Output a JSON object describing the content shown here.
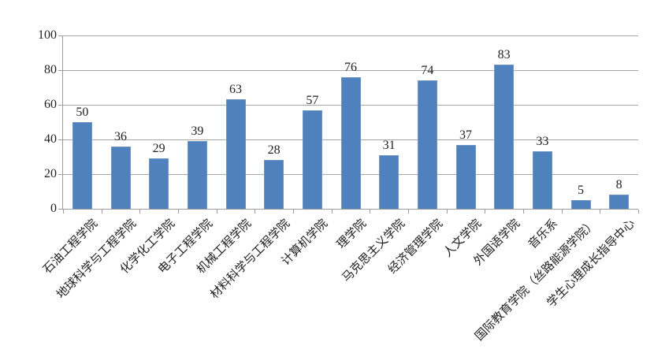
{
  "chart_data": {
    "type": "bar",
    "title": "",
    "categories": [
      "石油工程学院",
      "地球科学与工程学院",
      "化学化工学院",
      "电子工程学院",
      "机械工程学院",
      "材料科学与工程学院",
      "计算机学院",
      "理学院",
      "马克思主义学院",
      "经济管理学院",
      "人文学院",
      "外国语学院",
      "音乐系",
      "国际教育学院（丝路能源学院）",
      "学生心理成长指导中心"
    ],
    "values": [
      50,
      36,
      29,
      39,
      63,
      28,
      57,
      76,
      31,
      74,
      37,
      83,
      33,
      5,
      8
    ],
    "data_labels_visible": true,
    "xlabel": "",
    "ylabel": "",
    "ylim": [
      0,
      100
    ],
    "yticks": [
      0,
      20,
      40,
      60,
      80,
      100
    ],
    "grid": "horizontal",
    "legend": "none",
    "category_label_rotation_deg": 45,
    "colors": {
      "bar_fill": "#4f81bd",
      "bar_border": "#7094c4",
      "gridline": "#a6a6a6",
      "axis": "#9b9b9b",
      "text": "#1f1f1f",
      "background": "#ffffff"
    }
  }
}
